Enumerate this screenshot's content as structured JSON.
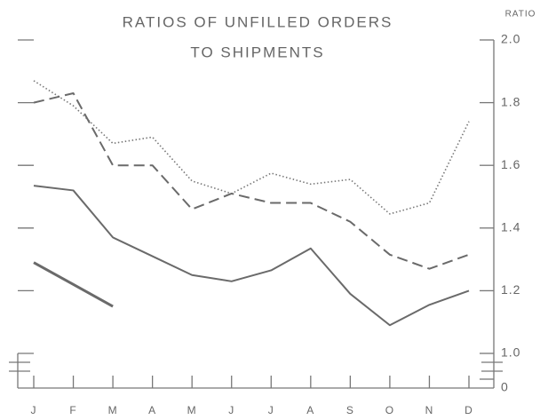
{
  "chart_data": {
    "type": "line",
    "title": [
      "RATIOS OF UNFILLED ORDERS",
      "TO SHIPMENTS"
    ],
    "y_label": "RATIO",
    "categories": [
      "J",
      "F",
      "M",
      "A",
      "M",
      "J",
      "J",
      "A",
      "S",
      "O",
      "N",
      "D"
    ],
    "series": [
      {
        "color": "#777777",
        "style": "dotted",
        "values": [
          1.87,
          1.79,
          1.67,
          1.69,
          1.55,
          1.51,
          1.575,
          1.54,
          1.555,
          1.445,
          1.48,
          1.74
        ]
      },
      {
        "color": "#6a6a6a",
        "style": "dashed",
        "values": [
          1.8,
          1.83,
          1.6,
          1.6,
          1.46,
          1.51,
          1.48,
          1.48,
          1.42,
          1.315,
          1.27,
          1.315
        ]
      },
      {
        "color": "#6a6a6a",
        "style": "solid",
        "values": [
          1.535,
          1.52,
          1.37,
          1.31,
          1.25,
          1.23,
          1.265,
          1.335,
          1.19,
          1.09,
          1.155,
          1.2
        ]
      },
      {
        "color": "#6a6a6a",
        "style": "thick",
        "values": [
          1.29,
          1.22,
          1.15,
          null,
          null,
          null,
          null,
          null,
          null,
          null,
          null,
          null
        ]
      }
    ],
    "ylim": [
      1.0,
      2.0
    ],
    "yticks": [
      {
        "value": 1.0,
        "label": "1.0"
      },
      1.2,
      1.4,
      1.6,
      1.8,
      {
        "value": 2.0,
        "label": "2.0"
      }
    ],
    "break_tick": 0
  }
}
